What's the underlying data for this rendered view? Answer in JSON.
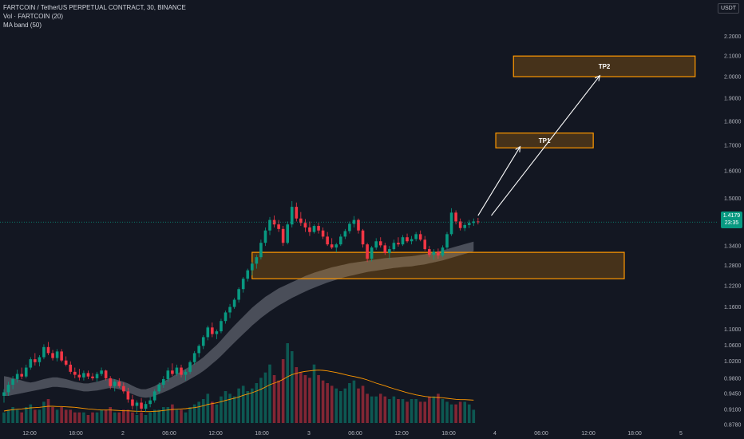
{
  "header": {
    "symbol_line": "FARTCOIN / TetherUS PERPETUAL CONTRACT, 30, BINANCE",
    "vol_line": "Vol · FARTCOIN (20)",
    "ma_line": "MA band (50)"
  },
  "currency_button": "USDT",
  "last_price": {
    "value": "1.4179",
    "countdown": "23:35"
  },
  "colors": {
    "up": "#089981",
    "down": "#f23645",
    "zone": "#ff9800",
    "band": "#787b86",
    "vol_ma": "#ff9800"
  },
  "chart_data": {
    "type": "candlestick",
    "title": "FARTCOIN / TetherUS PERPETUAL CONTRACT, 30, BINANCE",
    "price_axis": {
      "scale": "log",
      "ticks": [
        2.2,
        2.1,
        2.0,
        1.9,
        1.8,
        1.7,
        1.6,
        1.5,
        1.34,
        1.28,
        1.22,
        1.16,
        1.1,
        1.06,
        1.02,
        0.98,
        0.945,
        0.91,
        0.878
      ],
      "tick_labels": [
        "2.2000",
        "2.1000",
        "2.0000",
        "1.9000",
        "1.8000",
        "1.7000",
        "1.6000",
        "1.5000",
        "1.3400",
        "1.2800",
        "1.2200",
        "1.1600",
        "1.1000",
        "1.0600",
        "1.0200",
        "0.9800",
        "0.9450",
        "0.9100",
        "0.8780"
      ],
      "range": [
        0.865,
        2.3
      ]
    },
    "time_axis": {
      "labels": [
        "12:00",
        "18:00",
        "2",
        "06:00",
        "12:00",
        "18:00",
        "3",
        "06:00",
        "12:00",
        "18:00",
        "4",
        "06:00",
        "12:00",
        "18:00",
        "5"
      ]
    },
    "candles": [
      {
        "o": 0.94,
        "h": 0.955,
        "l": 0.925,
        "c": 0.948
      },
      {
        "o": 0.948,
        "h": 0.972,
        "l": 0.94,
        "c": 0.965
      },
      {
        "o": 0.965,
        "h": 0.985,
        "l": 0.955,
        "c": 0.978
      },
      {
        "o": 0.978,
        "h": 1.0,
        "l": 0.97,
        "c": 0.99
      },
      {
        "o": 0.99,
        "h": 1.005,
        "l": 0.978,
        "c": 0.984
      },
      {
        "o": 0.984,
        "h": 1.012,
        "l": 0.98,
        "c": 1.005
      },
      {
        "o": 1.005,
        "h": 1.03,
        "l": 1.0,
        "c": 1.025
      },
      {
        "o": 1.025,
        "h": 1.04,
        "l": 1.01,
        "c": 1.018
      },
      {
        "o": 1.018,
        "h": 1.035,
        "l": 1.008,
        "c": 1.03
      },
      {
        "o": 1.03,
        "h": 1.062,
        "l": 1.025,
        "c": 1.055
      },
      {
        "o": 1.055,
        "h": 1.068,
        "l": 1.035,
        "c": 1.04
      },
      {
        "o": 1.04,
        "h": 1.048,
        "l": 1.022,
        "c": 1.028
      },
      {
        "o": 1.028,
        "h": 1.05,
        "l": 1.02,
        "c": 1.044
      },
      {
        "o": 1.044,
        "h": 1.05,
        "l": 1.018,
        "c": 1.022
      },
      {
        "o": 1.022,
        "h": 1.032,
        "l": 1.008,
        "c": 1.012
      },
      {
        "o": 1.012,
        "h": 1.02,
        "l": 0.99,
        "c": 0.995
      },
      {
        "o": 0.995,
        "h": 1.005,
        "l": 0.98,
        "c": 0.988
      },
      {
        "o": 0.988,
        "h": 1.002,
        "l": 0.975,
        "c": 0.982
      },
      {
        "o": 0.982,
        "h": 0.998,
        "l": 0.975,
        "c": 0.992
      },
      {
        "o": 0.992,
        "h": 0.998,
        "l": 0.978,
        "c": 0.984
      },
      {
        "o": 0.984,
        "h": 0.992,
        "l": 0.975,
        "c": 0.98
      },
      {
        "o": 0.98,
        "h": 0.995,
        "l": 0.972,
        "c": 0.99
      },
      {
        "o": 0.99,
        "h": 1.005,
        "l": 0.985,
        "c": 0.998
      },
      {
        "o": 0.998,
        "h": 1.0,
        "l": 0.975,
        "c": 0.98
      },
      {
        "o": 0.98,
        "h": 0.985,
        "l": 0.955,
        "c": 0.962
      },
      {
        "o": 0.962,
        "h": 0.978,
        "l": 0.95,
        "c": 0.972
      },
      {
        "o": 0.972,
        "h": 0.98,
        "l": 0.958,
        "c": 0.962
      },
      {
        "o": 0.962,
        "h": 0.97,
        "l": 0.945,
        "c": 0.95
      },
      {
        "o": 0.95,
        "h": 0.958,
        "l": 0.925,
        "c": 0.932
      },
      {
        "o": 0.932,
        "h": 0.942,
        "l": 0.91,
        "c": 0.918
      },
      {
        "o": 0.918,
        "h": 0.93,
        "l": 0.9,
        "c": 0.925
      },
      {
        "o": 0.925,
        "h": 0.935,
        "l": 0.905,
        "c": 0.912
      },
      {
        "o": 0.912,
        "h": 0.928,
        "l": 0.905,
        "c": 0.922
      },
      {
        "o": 0.922,
        "h": 0.938,
        "l": 0.915,
        "c": 0.93
      },
      {
        "o": 0.93,
        "h": 0.955,
        "l": 0.925,
        "c": 0.95
      },
      {
        "o": 0.95,
        "h": 0.97,
        "l": 0.945,
        "c": 0.965
      },
      {
        "o": 0.965,
        "h": 0.985,
        "l": 0.958,
        "c": 0.978
      },
      {
        "o": 0.978,
        "h": 1.005,
        "l": 0.972,
        "c": 0.998
      },
      {
        "o": 0.998,
        "h": 1.015,
        "l": 0.985,
        "c": 0.99
      },
      {
        "o": 0.99,
        "h": 1.012,
        "l": 0.985,
        "c": 1.005
      },
      {
        "o": 1.005,
        "h": 1.012,
        "l": 0.982,
        "c": 0.988
      },
      {
        "o": 0.988,
        "h": 1.0,
        "l": 0.975,
        "c": 0.995
      },
      {
        "o": 0.995,
        "h": 1.022,
        "l": 0.99,
        "c": 1.018
      },
      {
        "o": 1.018,
        "h": 1.045,
        "l": 1.012,
        "c": 1.04
      },
      {
        "o": 1.04,
        "h": 1.062,
        "l": 1.03,
        "c": 1.058
      },
      {
        "o": 1.058,
        "h": 1.085,
        "l": 1.05,
        "c": 1.08
      },
      {
        "o": 1.08,
        "h": 1.11,
        "l": 1.072,
        "c": 1.105
      },
      {
        "o": 1.105,
        "h": 1.118,
        "l": 1.08,
        "c": 1.088
      },
      {
        "o": 1.088,
        "h": 1.1,
        "l": 1.075,
        "c": 1.095
      },
      {
        "o": 1.095,
        "h": 1.128,
        "l": 1.09,
        "c": 1.122
      },
      {
        "o": 1.122,
        "h": 1.15,
        "l": 1.115,
        "c": 1.145
      },
      {
        "o": 1.145,
        "h": 1.168,
        "l": 1.13,
        "c": 1.16
      },
      {
        "o": 1.16,
        "h": 1.185,
        "l": 1.155,
        "c": 1.18
      },
      {
        "o": 1.18,
        "h": 1.215,
        "l": 1.172,
        "c": 1.21
      },
      {
        "o": 1.21,
        "h": 1.245,
        "l": 1.2,
        "c": 1.24
      },
      {
        "o": 1.24,
        "h": 1.27,
        "l": 1.232,
        "c": 1.265
      },
      {
        "o": 1.265,
        "h": 1.29,
        "l": 1.25,
        "c": 1.285
      },
      {
        "o": 1.285,
        "h": 1.312,
        "l": 1.27,
        "c": 1.305
      },
      {
        "o": 1.305,
        "h": 1.36,
        "l": 1.298,
        "c": 1.35
      },
      {
        "o": 1.35,
        "h": 1.4,
        "l": 1.34,
        "c": 1.39
      },
      {
        "o": 1.39,
        "h": 1.435,
        "l": 1.375,
        "c": 1.425
      },
      {
        "o": 1.425,
        "h": 1.44,
        "l": 1.4,
        "c": 1.41
      },
      {
        "o": 1.41,
        "h": 1.425,
        "l": 1.385,
        "c": 1.395
      },
      {
        "o": 1.395,
        "h": 1.405,
        "l": 1.34,
        "c": 1.35
      },
      {
        "o": 1.35,
        "h": 1.42,
        "l": 1.345,
        "c": 1.41
      },
      {
        "o": 1.41,
        "h": 1.49,
        "l": 1.4,
        "c": 1.47
      },
      {
        "o": 1.47,
        "h": 1.485,
        "l": 1.42,
        "c": 1.43
      },
      {
        "o": 1.43,
        "h": 1.452,
        "l": 1.405,
        "c": 1.415
      },
      {
        "o": 1.415,
        "h": 1.428,
        "l": 1.385,
        "c": 1.4
      },
      {
        "o": 1.4,
        "h": 1.42,
        "l": 1.372,
        "c": 1.385
      },
      {
        "o": 1.385,
        "h": 1.41,
        "l": 1.38,
        "c": 1.405
      },
      {
        "o": 1.405,
        "h": 1.415,
        "l": 1.38,
        "c": 1.39
      },
      {
        "o": 1.39,
        "h": 1.4,
        "l": 1.362,
        "c": 1.37
      },
      {
        "o": 1.37,
        "h": 1.385,
        "l": 1.34,
        "c": 1.345
      },
      {
        "o": 1.345,
        "h": 1.365,
        "l": 1.33,
        "c": 1.335
      },
      {
        "o": 1.335,
        "h": 1.35,
        "l": 1.32,
        "c": 1.345
      },
      {
        "o": 1.345,
        "h": 1.378,
        "l": 1.34,
        "c": 1.37
      },
      {
        "o": 1.37,
        "h": 1.395,
        "l": 1.362,
        "c": 1.388
      },
      {
        "o": 1.388,
        "h": 1.42,
        "l": 1.38,
        "c": 1.412
      },
      {
        "o": 1.412,
        "h": 1.438,
        "l": 1.4,
        "c": 1.425
      },
      {
        "o": 1.425,
        "h": 1.43,
        "l": 1.38,
        "c": 1.39
      },
      {
        "o": 1.39,
        "h": 1.395,
        "l": 1.335,
        "c": 1.345
      },
      {
        "o": 1.345,
        "h": 1.35,
        "l": 1.29,
        "c": 1.3
      },
      {
        "o": 1.3,
        "h": 1.34,
        "l": 1.292,
        "c": 1.335
      },
      {
        "o": 1.335,
        "h": 1.365,
        "l": 1.328,
        "c": 1.355
      },
      {
        "o": 1.355,
        "h": 1.368,
        "l": 1.335,
        "c": 1.342
      },
      {
        "o": 1.342,
        "h": 1.35,
        "l": 1.312,
        "c": 1.318
      },
      {
        "o": 1.318,
        "h": 1.34,
        "l": 1.3,
        "c": 1.33
      },
      {
        "o": 1.33,
        "h": 1.36,
        "l": 1.325,
        "c": 1.35
      },
      {
        "o": 1.35,
        "h": 1.368,
        "l": 1.338,
        "c": 1.345
      },
      {
        "o": 1.345,
        "h": 1.375,
        "l": 1.34,
        "c": 1.368
      },
      {
        "o": 1.368,
        "h": 1.38,
        "l": 1.35,
        "c": 1.355
      },
      {
        "o": 1.355,
        "h": 1.372,
        "l": 1.345,
        "c": 1.362
      },
      {
        "o": 1.362,
        "h": 1.385,
        "l": 1.355,
        "c": 1.378
      },
      {
        "o": 1.378,
        "h": 1.39,
        "l": 1.355,
        "c": 1.36
      },
      {
        "o": 1.36,
        "h": 1.372,
        "l": 1.325,
        "c": 1.33
      },
      {
        "o": 1.33,
        "h": 1.34,
        "l": 1.305,
        "c": 1.312
      },
      {
        "o": 1.312,
        "h": 1.33,
        "l": 1.298,
        "c": 1.322
      },
      {
        "o": 1.322,
        "h": 1.332,
        "l": 1.3,
        "c": 1.31
      },
      {
        "o": 1.31,
        "h": 1.342,
        "l": 1.305,
        "c": 1.335
      },
      {
        "o": 1.335,
        "h": 1.385,
        "l": 1.33,
        "c": 1.378
      },
      {
        "o": 1.378,
        "h": 1.465,
        "l": 1.372,
        "c": 1.45
      },
      {
        "o": 1.45,
        "h": 1.458,
        "l": 1.41,
        "c": 1.42
      },
      {
        "o": 1.42,
        "h": 1.43,
        "l": 1.39,
        "c": 1.398
      },
      {
        "o": 1.398,
        "h": 1.415,
        "l": 1.388,
        "c": 1.408
      },
      {
        "o": 1.408,
        "h": 1.425,
        "l": 1.398,
        "c": 1.415
      },
      {
        "o": 1.415,
        "h": 1.43,
        "l": 1.405,
        "c": 1.42
      },
      {
        "o": 1.42,
        "h": 1.432,
        "l": 1.41,
        "c": 1.4179
      }
    ],
    "volume": [
      4,
      5,
      6,
      5,
      4,
      6,
      7,
      5,
      5,
      8,
      9,
      6,
      5,
      6,
      5,
      5,
      4,
      4,
      4,
      3,
      4,
      4,
      5,
      5,
      6,
      4,
      4,
      5,
      5,
      4,
      3,
      4,
      3,
      4,
      5,
      5,
      6,
      6,
      7,
      5,
      5,
      4,
      6,
      7,
      8,
      9,
      11,
      8,
      7,
      10,
      12,
      11,
      10,
      13,
      14,
      12,
      13,
      15,
      17,
      19,
      22,
      18,
      16,
      24,
      30,
      27,
      21,
      19,
      18,
      17,
      22,
      18,
      16,
      15,
      14,
      13,
      12,
      13,
      15,
      16,
      13,
      14,
      11,
      10,
      10,
      11,
      10,
      9,
      10,
      9,
      9,
      8,
      9,
      9,
      8,
      8,
      10,
      10,
      11,
      9,
      8,
      7,
      7,
      8,
      8,
      7,
      5
    ],
    "volume_ma": [
      4.5,
      4.8,
      5.0,
      5.2,
      5.3,
      5.5,
      5.7,
      5.8,
      5.9,
      6.1,
      6.3,
      6.3,
      6.2,
      6.2,
      6.1,
      6.0,
      5.9,
      5.7,
      5.5,
      5.3,
      5.2,
      5.0,
      4.9,
      4.9,
      4.9,
      4.8,
      4.7,
      4.6,
      4.6,
      4.5,
      4.4,
      4.4,
      4.3,
      4.3,
      4.4,
      4.5,
      4.7,
      4.9,
      5.1,
      5.2,
      5.3,
      5.4,
      5.6,
      5.8,
      6.1,
      6.5,
      7.0,
      7.3,
      7.6,
      8.0,
      8.5,
      8.9,
      9.3,
      9.8,
      10.4,
      10.9,
      11.4,
      12.0,
      12.7,
      13.5,
      14.4,
      15.0,
      15.6,
      16.4,
      17.4,
      18.2,
      18.7,
      19.1,
      19.4,
      19.6,
      19.8,
      19.9,
      19.8,
      19.6,
      19.3,
      19.0,
      18.6,
      18.2,
      17.8,
      17.5,
      17.1,
      16.7,
      16.2,
      15.6,
      15.0,
      14.5,
      14.0,
      13.4,
      12.9,
      12.4,
      11.9,
      11.4,
      11.0,
      10.6,
      10.3,
      10.0,
      9.8,
      9.7,
      9.6,
      9.5,
      9.3,
      9.1,
      8.9,
      8.8,
      8.8,
      8.7,
      8.6
    ],
    "volume_max": 42,
    "ma_band": {
      "upper": [
        0.985,
        0.983,
        0.98,
        0.978,
        0.975,
        0.972,
        0.97,
        0.972,
        0.975,
        0.978,
        0.98,
        0.982,
        0.982,
        0.98,
        0.978,
        0.975,
        0.972,
        0.97,
        0.968,
        0.968,
        0.97,
        0.972,
        0.975,
        0.978,
        0.98,
        0.978,
        0.975,
        0.972,
        0.968,
        0.963,
        0.958,
        0.955,
        0.955,
        0.958,
        0.962,
        0.968,
        0.972,
        0.978,
        0.984,
        0.99,
        0.996,
        1.002,
        1.008,
        1.015,
        1.022,
        1.03,
        1.04,
        1.05,
        1.06,
        1.072,
        1.085,
        1.098,
        1.11,
        1.122,
        1.134,
        1.146,
        1.158,
        1.168,
        1.178,
        1.188,
        1.196,
        1.204,
        1.212,
        1.218,
        1.224,
        1.23,
        1.236,
        1.242,
        1.248,
        1.253,
        1.258,
        1.262,
        1.266,
        1.27,
        1.274,
        1.277,
        1.28,
        1.283,
        1.286,
        1.288,
        1.29,
        1.292,
        1.294,
        1.296,
        1.298,
        1.3,
        1.302,
        1.303,
        1.304,
        1.305,
        1.306,
        1.307,
        1.308,
        1.31,
        1.312,
        1.314,
        1.317,
        1.32,
        1.323,
        1.326,
        1.33,
        1.334,
        1.338,
        1.342,
        1.346,
        1.35,
        1.354
      ],
      "lower": [
        0.94,
        0.94,
        0.942,
        0.944,
        0.946,
        0.948,
        0.95,
        0.952,
        0.954,
        0.956,
        0.958,
        0.96,
        0.96,
        0.959,
        0.958,
        0.956,
        0.954,
        0.952,
        0.95,
        0.95,
        0.951,
        0.952,
        0.954,
        0.956,
        0.958,
        0.957,
        0.955,
        0.952,
        0.948,
        0.944,
        0.94,
        0.937,
        0.936,
        0.937,
        0.94,
        0.944,
        0.948,
        0.952,
        0.957,
        0.962,
        0.967,
        0.972,
        0.978,
        0.984,
        0.99,
        0.997,
        1.005,
        1.014,
        1.023,
        1.033,
        1.044,
        1.055,
        1.066,
        1.077,
        1.088,
        1.099,
        1.11,
        1.12,
        1.13,
        1.139,
        1.148,
        1.156,
        1.164,
        1.171,
        1.178,
        1.185,
        1.191,
        1.197,
        1.203,
        1.209,
        1.214,
        1.219,
        1.224,
        1.229,
        1.233,
        1.237,
        1.241,
        1.245,
        1.248,
        1.251,
        1.254,
        1.257,
        1.26,
        1.262,
        1.264,
        1.266,
        1.268,
        1.27,
        1.272,
        1.273,
        1.275,
        1.276,
        1.277,
        1.279,
        1.281,
        1.283,
        1.286,
        1.289,
        1.292,
        1.295,
        1.299,
        1.303,
        1.307,
        1.311,
        1.315,
        1.319,
        1.323
      ]
    },
    "zones": [
      {
        "name": "support-zone",
        "label": "",
        "p_low": 1.24,
        "p_high": 1.32,
        "start_bar": 56,
        "end_bar": 140
      },
      {
        "name": "tp1-zone",
        "label": "TP1",
        "p_low": 1.69,
        "p_high": 1.75,
        "start_bar": 111,
        "end_bar": 133
      },
      {
        "name": "tp2-zone",
        "label": "TP2",
        "p_low": 2.0,
        "p_high": 2.1,
        "start_bar": 115,
        "end_bar": 156
      }
    ],
    "arrows": [
      {
        "from_bar": 107,
        "from_price": 1.44,
        "to_bar": 116.5,
        "to_price": 1.695
      },
      {
        "from_bar": 110,
        "from_price": 1.44,
        "to_bar": 134.5,
        "to_price": 2.005
      }
    ]
  }
}
